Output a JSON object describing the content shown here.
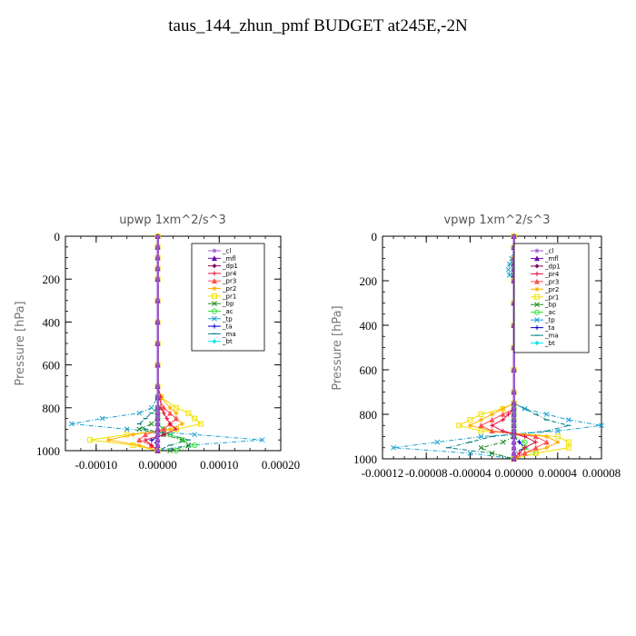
{
  "page_title": "taus_144_zhun_pmf  BUDGET at245E,-2N",
  "legend_entries": [
    "_cl",
    "_mfl",
    "_dp1",
    "_pr4",
    "_pr3",
    "_pr2",
    "_pr1",
    "_bp",
    "_ac",
    "_tp",
    "_ta",
    "_ma",
    "_bt"
  ],
  "series_colors": {
    "_cl": "#9b59d0",
    "_mfl": "#6a0dad",
    "_dp1": "#8b0057",
    "_pr4": "#e0103c",
    "_pr3": "#ff5050",
    "_pr2": "#ffb000",
    "_pr1": "#f0e000",
    "_bp": "#228b22",
    "_ac": "#33dd33",
    "_tp": "#1aa0d0",
    "_ta": "#0000cc",
    "_ma": "#008080",
    "_bt": "#00e5ee"
  },
  "chart_data": [
    {
      "type": "line",
      "title": "upwp   1xm^2/s^3",
      "ylabel": "Pressure [hPa]",
      "xlim": [
        -0.00015,
        0.0002
      ],
      "ylim": [
        1000,
        0
      ],
      "x_ticks": [
        "-0.00010",
        "0.00000",
        "0.00010",
        "0.00020"
      ],
      "x_tick_values": [
        -0.0001,
        0,
        0.0001,
        0.0002
      ],
      "y_ticks": [
        0,
        200,
        400,
        600,
        800,
        1000
      ],
      "legend_position": "top-right",
      "pressure_levels": [
        0,
        50,
        100,
        150,
        200,
        300,
        400,
        500,
        600,
        700,
        750,
        800,
        825,
        850,
        875,
        900,
        925,
        950,
        975,
        1000
      ],
      "series": [
        {
          "name": "_cl",
          "values": [
            0,
            0,
            0,
            0,
            0,
            0,
            0,
            0,
            0,
            0,
            0,
            0,
            0,
            0,
            0,
            0,
            0,
            0,
            0,
            0
          ]
        },
        {
          "name": "_mfl",
          "values": [
            0,
            0,
            0,
            0,
            0,
            0,
            0,
            0,
            0,
            0,
            0,
            0,
            0,
            0,
            0,
            0,
            0,
            0,
            0,
            0
          ]
        },
        {
          "name": "_dp1",
          "values": [
            0,
            0,
            0,
            0,
            0,
            0,
            0,
            0,
            0,
            0,
            0,
            0,
            0,
            0,
            0,
            0,
            0,
            0,
            0,
            0
          ]
        },
        {
          "name": "_pr4",
          "values": [
            0,
            0,
            0,
            0,
            0,
            0,
            0,
            0,
            0,
            0,
            5e-06,
            5e-06,
            1e-05,
            1.5e-05,
            2e-05,
            3e-05,
            1e-05,
            -2e-05,
            -1e-05,
            0
          ]
        },
        {
          "name": "_pr3",
          "values": [
            0,
            0,
            0,
            0,
            0,
            0,
            0,
            0,
            0,
            0,
            0,
            1e-05,
            2e-05,
            3e-05,
            2e-05,
            1e-05,
            -2e-05,
            -3e-05,
            -1e-05,
            0
          ]
        },
        {
          "name": "_pr2",
          "values": [
            0,
            0,
            0,
            0,
            0,
            0,
            0,
            0,
            0,
            0,
            5e-06,
            2e-05,
            3e-05,
            3e-05,
            4e-05,
            2e-05,
            -4e-05,
            -8e-05,
            -3e-05,
            0
          ]
        },
        {
          "name": "_pr1",
          "values": [
            0,
            0,
            0,
            0,
            0,
            0,
            0,
            0,
            0,
            0,
            5e-06,
            3e-05,
            5e-05,
            6e-05,
            7e-05,
            3e-05,
            -5e-05,
            -0.00011,
            -4e-05,
            0
          ]
        },
        {
          "name": "_bp",
          "values": [
            0,
            0,
            0,
            0,
            0,
            0,
            0,
            0,
            0,
            0,
            0,
            0,
            0,
            0,
            -1e-05,
            -3e-05,
            1e-05,
            4e-05,
            5e-05,
            2e-05
          ]
        },
        {
          "name": "_ac",
          "values": [
            0,
            0,
            0,
            0,
            0,
            0,
            0,
            0,
            0,
            0,
            0,
            0,
            0,
            0,
            0,
            1e-05,
            2e-05,
            4e-05,
            6e-05,
            3e-05
          ]
        },
        {
          "name": "_tp",
          "values": [
            0,
            0,
            0,
            0,
            0,
            0,
            0,
            0,
            0,
            0,
            0,
            -1e-05,
            -3e-05,
            -9e-05,
            -0.00014,
            -5e-05,
            6e-05,
            0.00017,
            5e-05,
            0
          ]
        },
        {
          "name": "_ta",
          "values": [
            0,
            0,
            0,
            0,
            0,
            0,
            0,
            0,
            0,
            0,
            0,
            0,
            0,
            0,
            0,
            1e-05,
            1e-05,
            -1e-05,
            0,
            0
          ]
        },
        {
          "name": "_ma",
          "values": [
            0,
            0,
            0,
            0,
            0,
            0,
            0,
            0,
            0,
            0,
            0,
            0,
            -1e-05,
            -2e-05,
            -3e-05,
            -2e-05,
            2e-05,
            5e-05,
            2e-05,
            0
          ]
        },
        {
          "name": "_bt",
          "values": [
            0,
            0,
            0,
            0,
            0,
            0,
            0,
            0,
            0,
            0,
            0,
            0,
            0,
            0,
            0,
            0,
            0,
            0,
            0,
            0
          ]
        }
      ]
    },
    {
      "type": "line",
      "title": "vpwp   1xm^2/s^3",
      "ylabel": "Pressure [hPa]",
      "xlim": [
        -0.00012,
        8e-05
      ],
      "ylim": [
        1000,
        0
      ],
      "x_ticks": [
        "-0.00012",
        "-0.00008",
        "-0.00004",
        "0.00000",
        "0.00004",
        "0.00008"
      ],
      "x_tick_values": [
        -0.00012,
        -8e-05,
        -4e-05,
        0,
        4e-05,
        8e-05
      ],
      "y_ticks": [
        0,
        200,
        400,
        600,
        800,
        1000
      ],
      "legend_position": "top-right",
      "pressure_levels": [
        0,
        50,
        100,
        125,
        150,
        175,
        200,
        300,
        400,
        500,
        600,
        700,
        750,
        775,
        800,
        825,
        850,
        875,
        900,
        925,
        950,
        975,
        1000
      ],
      "series": [
        {
          "name": "_cl",
          "values": [
            0,
            0,
            0,
            0,
            0,
            0,
            0,
            0,
            0,
            0,
            0,
            0,
            0,
            0,
            0,
            0,
            0,
            0,
            0,
            0,
            0,
            0,
            0
          ]
        },
        {
          "name": "_mfl",
          "values": [
            0,
            0,
            0,
            0,
            0,
            0,
            0,
            0,
            0,
            0,
            0,
            0,
            0,
            0,
            0,
            0,
            0,
            0,
            0,
            0,
            0,
            0,
            0
          ]
        },
        {
          "name": "_dp1",
          "values": [
            0,
            0,
            0,
            0,
            0,
            0,
            0,
            0,
            0,
            0,
            0,
            0,
            0,
            0,
            0,
            0,
            0,
            0,
            0,
            0,
            0,
            0,
            0
          ]
        },
        {
          "name": "_pr4",
          "values": [
            0,
            0,
            0,
            0,
            0,
            0,
            0,
            0,
            0,
            0,
            0,
            0,
            0,
            0,
            -5e-06,
            -1e-05,
            -2e-05,
            -1e-05,
            1e-05,
            2e-05,
            1e-05,
            5e-06,
            0
          ]
        },
        {
          "name": "_pr3",
          "values": [
            0,
            0,
            0,
            0,
            0,
            0,
            0,
            0,
            0,
            0,
            0,
            0,
            0,
            0,
            -1e-05,
            -2e-05,
            -3e-05,
            -2e-05,
            2e-05,
            3e-05,
            2e-05,
            1e-05,
            0
          ]
        },
        {
          "name": "_pr2",
          "values": [
            0,
            0,
            2e-06,
            4e-06,
            3e-06,
            2e-06,
            0,
            0,
            0,
            0,
            0,
            0,
            0,
            -1e-05,
            -2e-05,
            -3e-05,
            -4e-05,
            -2e-05,
            3e-05,
            4e-05,
            3e-05,
            1e-05,
            0
          ]
        },
        {
          "name": "_pr1",
          "values": [
            0,
            0,
            0,
            5e-06,
            1e-05,
            5e-06,
            0,
            0,
            0,
            0,
            0,
            0,
            0,
            -1e-05,
            -3e-05,
            -4e-05,
            -5e-05,
            -3e-05,
            4e-05,
            5e-05,
            5e-05,
            2e-05,
            0
          ]
        },
        {
          "name": "_bp",
          "values": [
            0,
            0,
            0,
            0,
            0,
            0,
            0,
            0,
            0,
            0,
            0,
            0,
            0,
            0,
            0,
            0,
            0,
            0,
            0,
            -1e-05,
            -3e-05,
            -2e-05,
            0
          ]
        },
        {
          "name": "_ac",
          "values": [
            0,
            0,
            0,
            0,
            0,
            0,
            0,
            0,
            0,
            0,
            0,
            0,
            0,
            0,
            0,
            0,
            0,
            0,
            0,
            1e-05,
            1e-05,
            2e-05,
            0
          ]
        },
        {
          "name": "_tp",
          "values": [
            0,
            0,
            -2e-06,
            -4e-06,
            -5e-06,
            -4e-06,
            0,
            0,
            0,
            0,
            0,
            0,
            0,
            1e-05,
            3e-05,
            5e-05,
            8e-05,
            4e-05,
            -3e-05,
            -7e-05,
            -0.00011,
            -4e-05,
            0
          ]
        },
        {
          "name": "_ta",
          "values": [
            0,
            0,
            0,
            0,
            0,
            0,
            0,
            0,
            0,
            0,
            0,
            0,
            0,
            0,
            0,
            0,
            0,
            0,
            0,
            5e-06,
            1e-05,
            0,
            0
          ]
        },
        {
          "name": "_ma",
          "values": [
            0,
            0,
            0,
            0,
            0,
            0,
            0,
            0,
            0,
            0,
            0,
            0,
            0,
            1e-05,
            2e-05,
            3e-05,
            5e-05,
            3e-05,
            -2e-05,
            -4e-05,
            -6e-05,
            -2e-05,
            0
          ]
        },
        {
          "name": "_bt",
          "values": [
            0,
            0,
            0,
            0,
            0,
            0,
            0,
            0,
            0,
            0,
            0,
            0,
            0,
            0,
            0,
            0,
            0,
            0,
            0,
            0,
            0,
            0,
            0
          ]
        }
      ]
    }
  ]
}
